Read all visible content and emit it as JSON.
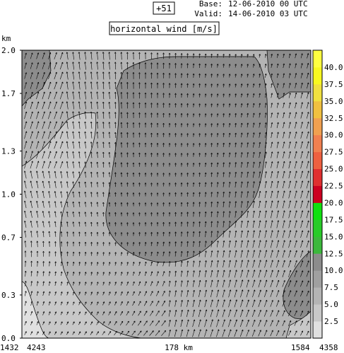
{
  "header": {
    "forecast_step": "+51",
    "base_label": "Base:",
    "base_value": "12-06-2010  00 UTC",
    "valid_label": "Valid:",
    "valid_value": "14-06-2010  03 UTC",
    "field_label": "horizontal wind [m/s]"
  },
  "chart_data": {
    "type": "heatmap",
    "title": "horizontal wind [m/s]",
    "ylabel": "km",
    "xlabel": "178 km",
    "ylim": [
      0,
      2.0
    ],
    "y_ticks": [
      "0.0",
      "0.3",
      "0.7",
      "1.0",
      "1.3",
      "1.7",
      "2.0"
    ],
    "x_tick_labels": [
      "1432",
      "4243",
      "178 km",
      "1584",
      "4358"
    ],
    "colorbar": {
      "ticks": [
        "2.5",
        "5.0",
        "7.5",
        "10.0",
        "12.5",
        "15.0",
        "17.5",
        "20.0",
        "22.5",
        "25.0",
        "27.5",
        "30.0",
        "32.5",
        "35.0",
        "37.5",
        "40.0"
      ],
      "colors": [
        "#e0e0e0",
        "#c8c8c8",
        "#b4b4b4",
        "#a0a0a0",
        "#8c8c8c",
        "#3cb83c",
        "#28cc28",
        "#10e010",
        "#cc0020",
        "#e03030",
        "#ee6040",
        "#f08050",
        "#f0a050",
        "#f0c040",
        "#f0e040",
        "#f8f820",
        "#ffff40"
      ]
    },
    "wind_field": "vector arrows over shaded wind speed regions"
  }
}
